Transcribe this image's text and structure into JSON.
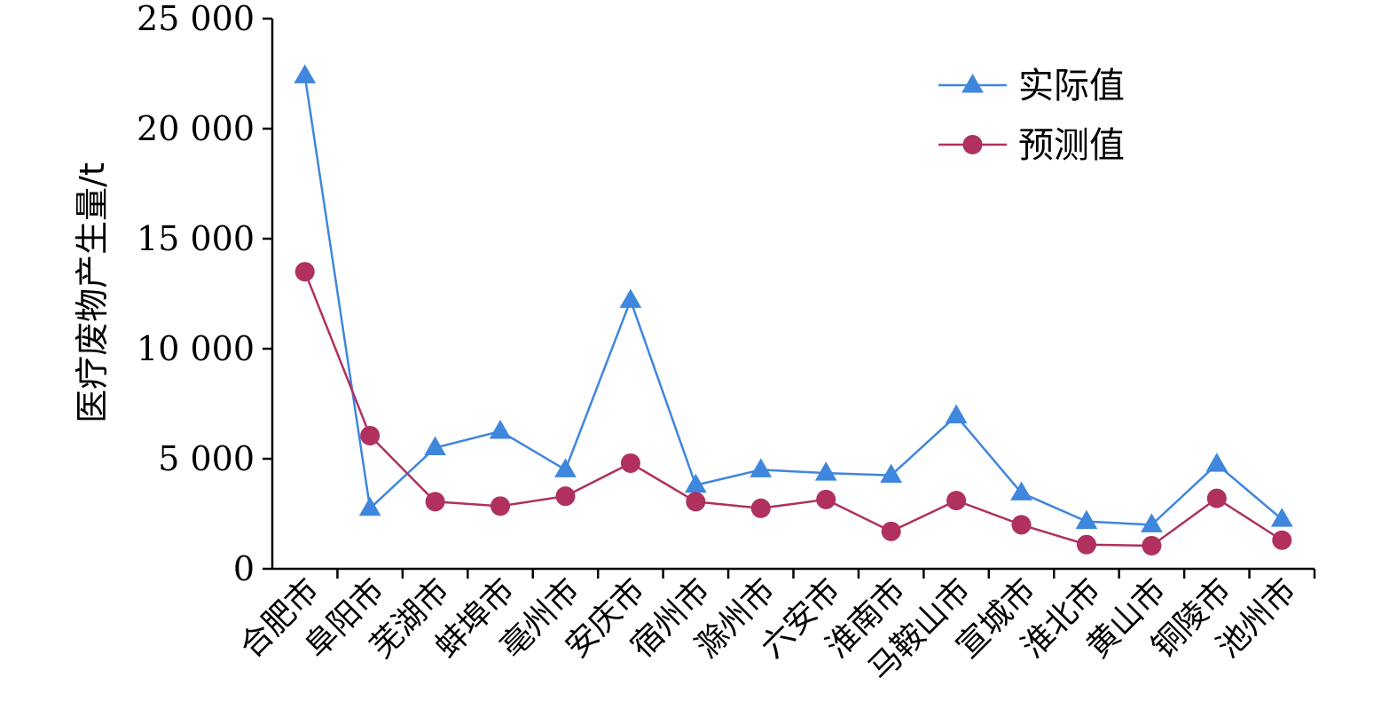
{
  "chart_data": {
    "type": "line",
    "title": "",
    "xlabel": "",
    "ylabel": "医疗废物产生量/t",
    "ylim": [
      0,
      25000
    ],
    "yticks": [
      0,
      5000,
      10000,
      15000,
      20000,
      25000
    ],
    "ytick_labels": [
      "0",
      "5 000",
      "10 000",
      "15 000",
      "20 000",
      "25 000"
    ],
    "grid": false,
    "legend_position": "top-right",
    "categories": [
      "合肥市",
      "阜阳市",
      "芜湖市",
      "蚌埠市",
      "亳州市",
      "安庆市",
      "宿州市",
      "滁州市",
      "六安市",
      "淮南市",
      "马鞍山市",
      "宣城市",
      "淮北市",
      "黄山市",
      "铜陵市",
      "池州市"
    ],
    "series": [
      {
        "name": "实际值",
        "color": "#3f86dd",
        "marker": "triangle",
        "values": [
          22400,
          2750,
          5500,
          6250,
          4500,
          12200,
          3800,
          4500,
          4350,
          4250,
          6950,
          3450,
          2150,
          2000,
          4750,
          2250
        ]
      },
      {
        "name": "预测值",
        "color": "#b03060",
        "marker": "circle",
        "values": [
          13500,
          6050,
          3050,
          2850,
          3300,
          4800,
          3050,
          2750,
          3150,
          1700,
          3100,
          2000,
          1100,
          1050,
          3200,
          1300
        ]
      }
    ]
  }
}
